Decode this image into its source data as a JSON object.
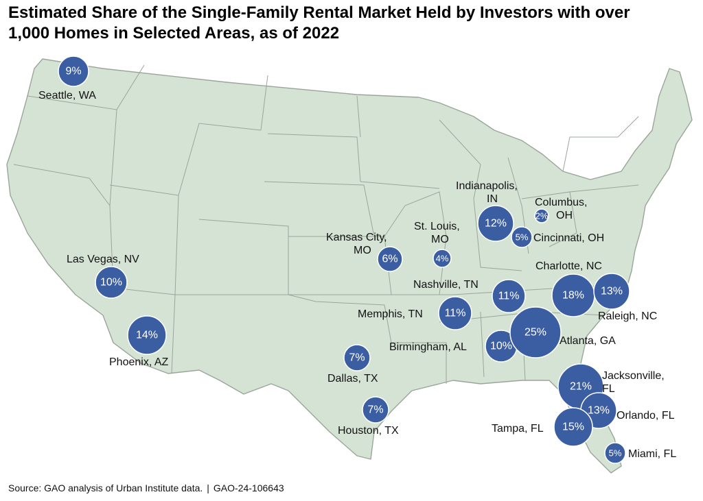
{
  "title_line1": "Estimated Share of the Single-Family Rental Market Held by Investors with over",
  "title_line2": "1,000 Homes in Selected Areas, as of 2022",
  "source": "Source: GAO analysis of Urban Institute data.",
  "report_id": "GAO-24-106643",
  "colors": {
    "bubble": "#3b5ea3",
    "land": "#d5e3d5",
    "border": "#9aa59a"
  },
  "cities": [
    {
      "name": "Seattle, WA",
      "value": "9%"
    },
    {
      "name": "Las Vegas, NV",
      "value": "10%"
    },
    {
      "name": "Phoenix, AZ",
      "value": "14%"
    },
    {
      "name": "Kansas City, MO",
      "value": "6%"
    },
    {
      "name": "St. Louis, MO",
      "value": "4%"
    },
    {
      "name": "Indianapolis, IN",
      "value": "12%"
    },
    {
      "name": "Columbus, OH",
      "value": "2%"
    },
    {
      "name": "Cincinnati, OH",
      "value": "5%"
    },
    {
      "name": "Nashville, TN",
      "value": "11%"
    },
    {
      "name": "Memphis, TN",
      "value": "11%"
    },
    {
      "name": "Dallas, TX",
      "value": "7%"
    },
    {
      "name": "Houston, TX",
      "value": "7%"
    },
    {
      "name": "Birmingham, AL",
      "value": "10%"
    },
    {
      "name": "Atlanta, GA",
      "value": "25%"
    },
    {
      "name": "Charlotte, NC",
      "value": "18%"
    },
    {
      "name": "Raleigh, NC",
      "value": "13%"
    },
    {
      "name": "Jacksonville, FL",
      "value": "21%"
    },
    {
      "name": "Orlando, FL",
      "value": "13%"
    },
    {
      "name": "Tampa, FL",
      "value": "15%"
    },
    {
      "name": "Miami, FL",
      "value": "5%"
    }
  ]
}
